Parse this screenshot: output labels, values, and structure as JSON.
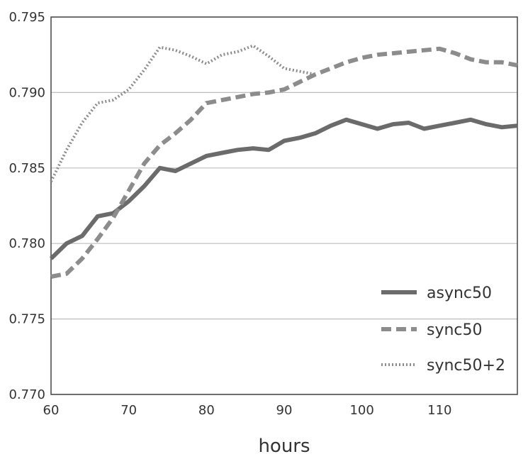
{
  "chart_data": {
    "type": "line",
    "title": "",
    "xlabel": "hours",
    "ylabel": "",
    "xlim": [
      60,
      120
    ],
    "ylim": [
      0.77,
      0.795
    ],
    "xticks": [
      60,
      70,
      80,
      90,
      100,
      110
    ],
    "xtick_labels": [
      "60",
      "70",
      "80",
      "90",
      "100",
      "110"
    ],
    "yticks": [
      0.77,
      0.775,
      0.78,
      0.785,
      0.79,
      0.795
    ],
    "ytick_labels": [
      "0.770",
      "0.775",
      "0.780",
      "0.785",
      "0.790",
      "0.795"
    ],
    "grid": "horizontal",
    "legend_position": "lower-right",
    "series": [
      {
        "name": "async50",
        "style": "solid",
        "color": "#6b6b6b",
        "x": [
          60,
          62,
          64,
          66,
          68,
          70,
          72,
          74,
          76,
          78,
          80,
          82,
          84,
          86,
          88,
          90,
          92,
          94,
          96,
          98,
          100,
          102,
          104,
          106,
          108,
          110,
          112,
          114,
          116,
          118,
          120
        ],
        "y": [
          0.779,
          0.78,
          0.7805,
          0.7818,
          0.782,
          0.7828,
          0.7838,
          0.785,
          0.7848,
          0.7853,
          0.7858,
          0.786,
          0.7862,
          0.7863,
          0.7862,
          0.7868,
          0.787,
          0.7873,
          0.7878,
          0.7882,
          0.7879,
          0.7876,
          0.7879,
          0.788,
          0.7876,
          0.7878,
          0.788,
          0.7882,
          0.7879,
          0.7877,
          0.7878
        ]
      },
      {
        "name": "sync50",
        "style": "dashed",
        "color": "#8c8c8c",
        "x": [
          60,
          62,
          64,
          66,
          68,
          70,
          72,
          74,
          76,
          78,
          80,
          82,
          84,
          86,
          88,
          90,
          92,
          94,
          96,
          98,
          100,
          102,
          104,
          106,
          108,
          110,
          112,
          114,
          116,
          118,
          120
        ],
        "y": [
          0.7778,
          0.778,
          0.779,
          0.7803,
          0.7817,
          0.7835,
          0.7853,
          0.7865,
          0.7873,
          0.7882,
          0.7893,
          0.7895,
          0.7897,
          0.7899,
          0.79,
          0.7902,
          0.7907,
          0.7912,
          0.7916,
          0.792,
          0.7923,
          0.7925,
          0.7926,
          0.7927,
          0.7928,
          0.7929,
          0.7926,
          0.7922,
          0.792,
          0.792,
          0.7918
        ]
      },
      {
        "name": "sync50+2",
        "style": "dotted",
        "color": "#8c8c8c",
        "x": [
          60,
          62,
          64,
          66,
          68,
          70,
          72,
          74,
          76,
          78,
          80,
          82,
          84,
          86,
          88,
          90,
          92,
          94
        ],
        "y": [
          0.7841,
          0.7862,
          0.788,
          0.7893,
          0.7895,
          0.7902,
          0.7915,
          0.793,
          0.7928,
          0.7924,
          0.7919,
          0.7925,
          0.7927,
          0.7931,
          0.7924,
          0.7916,
          0.7914,
          0.7912
        ]
      }
    ]
  }
}
